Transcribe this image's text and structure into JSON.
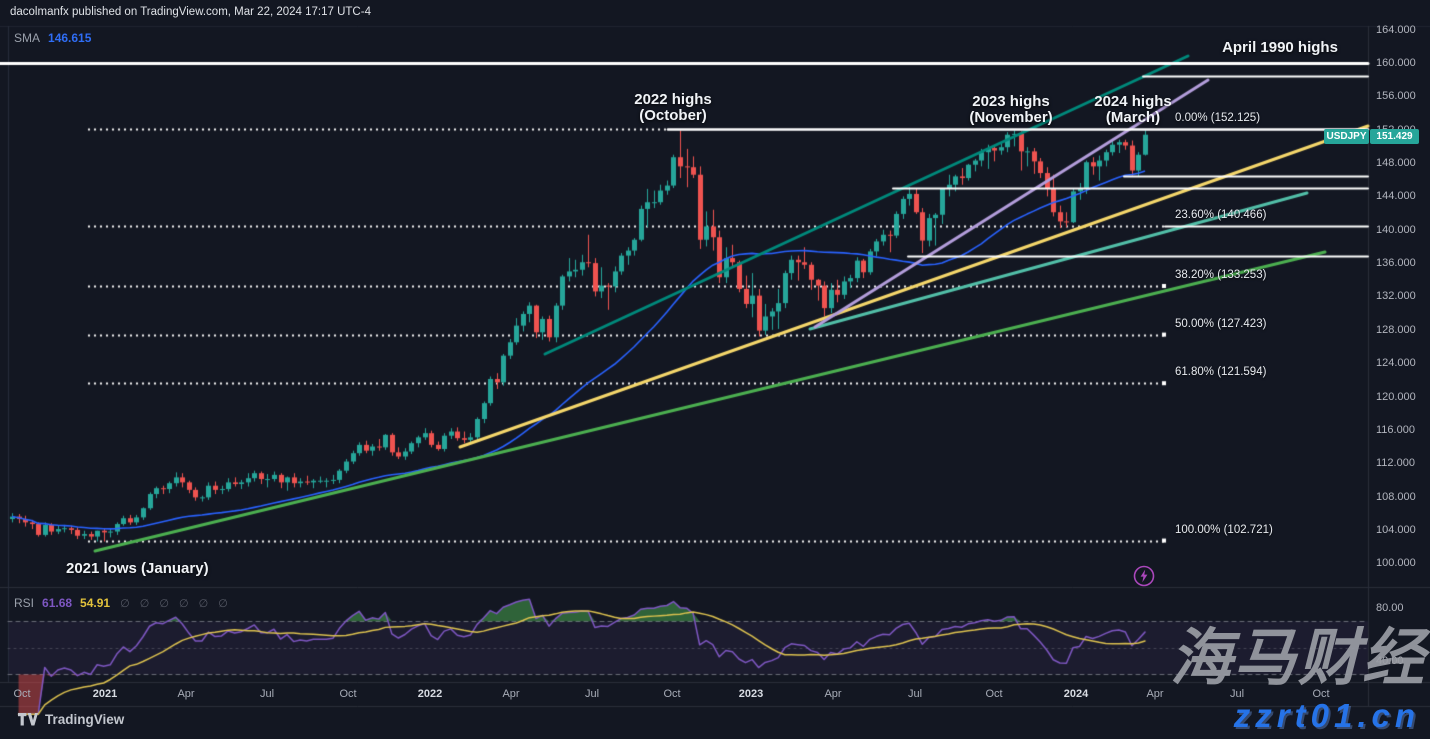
{
  "header": {
    "byline": "dacolmanfx published on TradingView.com, Mar 22, 2024 17:17 UTC-4"
  },
  "legend": {
    "sma_label": "SMA",
    "sma_value": "146.615"
  },
  "rsi_legend": {
    "label": "RSI",
    "value1": "61.68",
    "value2": "54.91",
    "empty_values_display": "∅ ∅ ∅ ∅ ∅ ∅"
  },
  "price_badge": {
    "symbol": "USDJPY",
    "price": "151.429",
    "color": "#26a69a"
  },
  "watermark": {
    "cn": "海马财经",
    "url": "zzrt01.cn"
  },
  "footer": {
    "logo_text": "TradingView"
  },
  "chart_data": {
    "type": "candlestick",
    "symbol": "USDJPY",
    "last_price": 151.429,
    "ylim": [
      98.5,
      164.5
    ],
    "colors": {
      "up": "#26a69a",
      "down": "#ef5350",
      "background": "#131722",
      "grid": "#2a2e39",
      "axis_text": "#b2b5be"
    },
    "price_axis_ticks": [
      164,
      160,
      156,
      152,
      148,
      144,
      140,
      136,
      132,
      128,
      124,
      120,
      116,
      112,
      108,
      104,
      100
    ],
    "rsi_axis_ticks": [
      80,
      40
    ],
    "time_axis": [
      {
        "label": "Oct",
        "x": 22
      },
      {
        "label": "2021",
        "x": 105,
        "bold": true
      },
      {
        "label": "Apr",
        "x": 186
      },
      {
        "label": "Jul",
        "x": 267
      },
      {
        "label": "Oct",
        "x": 348
      },
      {
        "label": "2022",
        "x": 430,
        "bold": true
      },
      {
        "label": "Apr",
        "x": 511
      },
      {
        "label": "Jul",
        "x": 592
      },
      {
        "label": "Oct",
        "x": 672
      },
      {
        "label": "2023",
        "x": 751,
        "bold": true
      },
      {
        "label": "Apr",
        "x": 833
      },
      {
        "label": "Jul",
        "x": 915
      },
      {
        "label": "Oct",
        "x": 994
      },
      {
        "label": "2024",
        "x": 1076,
        "bold": true
      },
      {
        "label": "Apr",
        "x": 1155
      },
      {
        "label": "Jul",
        "x": 1237
      },
      {
        "label": "Oct",
        "x": 1321
      }
    ],
    "annotations": [
      {
        "text": "April 1990 highs",
        "x": 1280,
        "y": 40
      },
      {
        "text": "2022 highs\n(October)",
        "x": 673,
        "y": 92
      },
      {
        "text": "2023 highs\n(November)",
        "x": 1011,
        "y": 94
      },
      {
        "text": "2024 highs\n(March)",
        "x": 1133,
        "y": 94
      },
      {
        "text": "2021 lows (January)",
        "x": 66,
        "y": 561,
        "align": "left"
      }
    ],
    "fibonacci": {
      "x_start": 88,
      "x_end": 1165,
      "label_x": 1175,
      "levels": [
        {
          "pct": "0.00%",
          "price": 152.125,
          "label": "0.00% (152.125)"
        },
        {
          "pct": "23.60%",
          "price": 140.466,
          "label": "23.60% (140.466)"
        },
        {
          "pct": "38.20%",
          "price": 133.253,
          "label": "38.20% (133.253)"
        },
        {
          "pct": "50.00%",
          "price": 127.423,
          "label": "50.00% (127.423)"
        },
        {
          "pct": "61.80%",
          "price": 121.594,
          "label": "61.80% (121.594)"
        },
        {
          "pct": "100.00%",
          "price": 102.721,
          "label": "100.00% (102.721)"
        }
      ]
    },
    "horizontal_lines": [
      {
        "price": 160.0,
        "x_start": 0,
        "width": 3
      },
      {
        "price": 158.44,
        "x_start": 1143,
        "width": 2
      },
      {
        "price": 152.125,
        "x_start": 668,
        "width": 2.5
      },
      {
        "price": 146.45,
        "x_start": 1124,
        "width": 2
      },
      {
        "price": 145.01,
        "x_start": 893,
        "width": 2
      },
      {
        "price": 136.86,
        "x_start": 908,
        "width": 2
      },
      {
        "price": 140.466,
        "x_start": 1165,
        "width": 2
      }
    ],
    "trendlines": [
      {
        "name": "green-support",
        "x1": 95,
        "y1": 551,
        "x2": 1325,
        "y2": 252,
        "color": "#4caf50",
        "width": 3
      },
      {
        "name": "yellow-support",
        "x1": 460,
        "y1": 447,
        "x2": 1368,
        "y2": 126,
        "color": "#f5d76b",
        "width": 3
      },
      {
        "name": "teal-dark-channel",
        "x1": 545,
        "y1": 354,
        "x2": 1188,
        "y2": 56,
        "color": "#00897b",
        "width": 3
      },
      {
        "name": "teal-light-support",
        "x1": 810,
        "y1": 329,
        "x2": 1307,
        "y2": 193,
        "color": "#52bfa8",
        "width": 3
      },
      {
        "name": "purple-channel",
        "x1": 815,
        "y1": 327,
        "x2": 1208,
        "y2": 80,
        "color": "#b39ddb",
        "width": 3
      }
    ],
    "sma": {
      "period": 35,
      "value": 146.615,
      "color": "#2962ff"
    },
    "rsi": {
      "period": 14,
      "value": 61.68,
      "ma_value": 54.91,
      "color": "#7e57c2",
      "ma_color": "#ddc24f",
      "bands": [
        70,
        50,
        30
      ],
      "overbought_fill": "#4caf50",
      "oversold_fill": "#ef5350"
    },
    "candles": [
      [
        105.3,
        106.0,
        104.9,
        105.6
      ],
      [
        105.6,
        105.9,
        104.8,
        105.3
      ],
      [
        105.3,
        105.7,
        104.4,
        104.9
      ],
      [
        104.9,
        105.2,
        104.1,
        104.7
      ],
      [
        104.7,
        104.9,
        103.2,
        103.4
      ],
      [
        103.4,
        104.9,
        103.2,
        104.6
      ],
      [
        104.6,
        104.8,
        103.4,
        103.8
      ],
      [
        103.8,
        104.5,
        103.5,
        104.1
      ],
      [
        104.1,
        104.6,
        103.7,
        104.2
      ],
      [
        104.2,
        104.5,
        103.5,
        104.0
      ],
      [
        104.0,
        104.3,
        102.9,
        103.3
      ],
      [
        103.3,
        103.9,
        102.9,
        103.5
      ],
      [
        103.5,
        103.8,
        102.8,
        103.2
      ],
      [
        103.2,
        103.9,
        102.6,
        103.9
      ],
      [
        103.9,
        104.1,
        102.6,
        103.7
      ],
      [
        103.7,
        104.2,
        103.1,
        103.8
      ],
      [
        103.8,
        104.9,
        103.4,
        104.7
      ],
      [
        104.7,
        105.7,
        104.5,
        105.4
      ],
      [
        105.4,
        105.8,
        104.6,
        104.9
      ],
      [
        104.9,
        105.8,
        104.6,
        105.5
      ],
      [
        105.5,
        106.7,
        105.2,
        106.6
      ],
      [
        106.6,
        108.5,
        106.4,
        108.3
      ],
      [
        108.3,
        109.2,
        107.8,
        109.0
      ],
      [
        109.0,
        109.3,
        108.3,
        108.9
      ],
      [
        108.9,
        109.8,
        108.4,
        109.6
      ],
      [
        109.6,
        110.9,
        109.2,
        110.3
      ],
      [
        110.3,
        110.8,
        109.1,
        109.7
      ],
      [
        109.7,
        109.9,
        108.4,
        108.8
      ],
      [
        108.8,
        109.1,
        107.5,
        107.9
      ],
      [
        107.9,
        108.1,
        107.4,
        107.9
      ],
      [
        107.9,
        109.7,
        107.6,
        109.3
      ],
      [
        109.3,
        109.8,
        108.3,
        108.8
      ],
      [
        108.8,
        109.3,
        108.3,
        108.9
      ],
      [
        108.9,
        110.2,
        108.6,
        109.7
      ],
      [
        109.7,
        110.3,
        109.2,
        109.5
      ],
      [
        109.5,
        110.0,
        108.9,
        109.7
      ],
      [
        109.7,
        110.8,
        109.2,
        110.2
      ],
      [
        110.2,
        111.1,
        109.8,
        110.8
      ],
      [
        110.8,
        111.0,
        109.5,
        110.1
      ],
      [
        110.1,
        110.7,
        109.1,
        110.1
      ],
      [
        110.1,
        111.0,
        109.8,
        110.6
      ],
      [
        110.6,
        110.8,
        109.0,
        109.7
      ],
      [
        109.7,
        110.4,
        108.7,
        110.3
      ],
      [
        110.3,
        110.8,
        109.1,
        109.6
      ],
      [
        109.6,
        110.2,
        109.1,
        109.8
      ],
      [
        109.8,
        110.5,
        109.4,
        109.7
      ],
      [
        109.7,
        110.1,
        109.0,
        109.9
      ],
      [
        109.9,
        110.4,
        109.6,
        109.9
      ],
      [
        109.9,
        110.2,
        109.1,
        109.9
      ],
      [
        109.9,
        110.6,
        109.5,
        110.0
      ],
      [
        110.0,
        111.3,
        109.6,
        111.1
      ],
      [
        111.1,
        112.5,
        110.8,
        112.2
      ],
      [
        112.2,
        113.5,
        111.9,
        113.2
      ],
      [
        113.2,
        114.5,
        112.9,
        114.2
      ],
      [
        114.2,
        114.7,
        113.2,
        113.5
      ],
      [
        113.5,
        114.3,
        112.9,
        114.0
      ],
      [
        114.0,
        114.9,
        113.5,
        113.9
      ],
      [
        113.9,
        115.5,
        113.6,
        115.4
      ],
      [
        115.4,
        115.6,
        112.9,
        113.3
      ],
      [
        113.3,
        113.9,
        112.5,
        112.8
      ],
      [
        112.8,
        113.8,
        112.4,
        113.4
      ],
      [
        113.4,
        114.6,
        113.1,
        114.4
      ],
      [
        114.4,
        115.3,
        113.9,
        115.1
      ],
      [
        115.1,
        116.2,
        114.8,
        115.6
      ],
      [
        115.6,
        115.9,
        113.9,
        114.2
      ],
      [
        114.2,
        114.6,
        113.5,
        113.7
      ],
      [
        113.7,
        115.6,
        113.4,
        115.3
      ],
      [
        115.3,
        116.2,
        114.9,
        115.8
      ],
      [
        115.8,
        116.3,
        114.7,
        115.0
      ],
      [
        115.0,
        115.8,
        114.4,
        114.8
      ],
      [
        114.8,
        115.6,
        114.5,
        115.1
      ],
      [
        115.1,
        117.5,
        114.7,
        117.3
      ],
      [
        117.3,
        119.4,
        116.8,
        119.2
      ],
      [
        119.2,
        122.4,
        118.9,
        122.1
      ],
      [
        122.1,
        122.8,
        120.9,
        121.7
      ],
      [
        121.7,
        125.1,
        121.3,
        124.9
      ],
      [
        124.9,
        126.9,
        124.5,
        126.5
      ],
      [
        126.5,
        129.4,
        126.2,
        128.5
      ],
      [
        128.5,
        130.2,
        127.8,
        129.9
      ],
      [
        129.9,
        131.3,
        128.9,
        130.9
      ],
      [
        130.9,
        131.0,
        127.0,
        127.7
      ],
      [
        127.7,
        129.6,
        126.8,
        129.3
      ],
      [
        129.3,
        129.7,
        126.6,
        127.1
      ],
      [
        127.1,
        131.2,
        126.5,
        130.9
      ],
      [
        130.9,
        134.6,
        130.4,
        134.4
      ],
      [
        134.4,
        136.6,
        133.8,
        135.0
      ],
      [
        135.0,
        136.4,
        134.3,
        135.2
      ],
      [
        135.2,
        137.0,
        134.5,
        136.1
      ],
      [
        136.1,
        139.4,
        135.5,
        136.0
      ],
      [
        136.0,
        136.6,
        132.0,
        132.6
      ],
      [
        132.6,
        135.5,
        131.8,
        133.3
      ],
      [
        133.3,
        133.6,
        130.4,
        133.2
      ],
      [
        133.2,
        135.6,
        132.5,
        135.0
      ],
      [
        135.0,
        137.2,
        134.6,
        136.9
      ],
      [
        136.9,
        137.9,
        135.8,
        137.5
      ],
      [
        137.5,
        139.0,
        136.9,
        138.8
      ],
      [
        138.8,
        142.9,
        138.6,
        142.5
      ],
      [
        142.5,
        144.9,
        140.3,
        143.3
      ],
      [
        143.3,
        144.7,
        142.6,
        143.3
      ],
      [
        143.3,
        145.4,
        143.0,
        144.7
      ],
      [
        144.7,
        145.9,
        144.2,
        145.3
      ],
      [
        145.3,
        149.0,
        145.0,
        148.7
      ],
      [
        148.7,
        151.9,
        146.2,
        147.6
      ],
      [
        147.6,
        149.7,
        145.1,
        147.5
      ],
      [
        147.5,
        148.8,
        146.2,
        146.6
      ],
      [
        146.6,
        147.6,
        137.7,
        138.8
      ],
      [
        138.8,
        142.2,
        138.0,
        140.4
      ],
      [
        140.4,
        142.4,
        137.5,
        139.1
      ],
      [
        139.1,
        139.9,
        133.6,
        134.3
      ],
      [
        134.3,
        137.9,
        133.6,
        136.6
      ],
      [
        136.6,
        138.2,
        135.6,
        136.1
      ],
      [
        136.1,
        136.3,
        132.5,
        132.9
      ],
      [
        132.9,
        134.5,
        130.6,
        131.1
      ],
      [
        131.1,
        134.8,
        129.5,
        132.1
      ],
      [
        132.1,
        132.9,
        127.2,
        127.9
      ],
      [
        127.9,
        131.1,
        127.4,
        129.6
      ],
      [
        129.6,
        130.6,
        128.0,
        130.2
      ],
      [
        130.2,
        132.9,
        128.1,
        131.2
      ],
      [
        131.2,
        135.1,
        130.6,
        134.8
      ],
      [
        134.8,
        136.9,
        134.0,
        136.4
      ],
      [
        136.4,
        136.9,
        133.9,
        136.1
      ],
      [
        136.1,
        137.9,
        135.3,
        135.8
      ],
      [
        135.8,
        136.1,
        132.8,
        134.0
      ],
      [
        134.0,
        134.1,
        131.5,
        133.3
      ],
      [
        133.3,
        133.8,
        129.6,
        130.6
      ],
      [
        130.6,
        133.6,
        130.0,
        132.8
      ],
      [
        132.8,
        134.0,
        131.3,
        132.2
      ],
      [
        132.2,
        134.4,
        131.7,
        133.8
      ],
      [
        133.8,
        134.6,
        133.0,
        134.2
      ],
      [
        134.2,
        136.7,
        133.7,
        136.3
      ],
      [
        136.3,
        136.5,
        134.2,
        134.9
      ],
      [
        134.9,
        137.7,
        134.6,
        137.4
      ],
      [
        137.4,
        138.9,
        136.8,
        138.6
      ],
      [
        138.6,
        140.0,
        138.1,
        139.4
      ],
      [
        139.4,
        139.9,
        137.3,
        139.3
      ],
      [
        139.3,
        142.2,
        139.0,
        141.9
      ],
      [
        141.9,
        144.0,
        141.3,
        143.7
      ],
      [
        143.7,
        145.1,
        142.9,
        144.3
      ],
      [
        144.3,
        144.9,
        141.9,
        142.1
      ],
      [
        142.1,
        142.6,
        137.2,
        138.7
      ],
      [
        138.7,
        141.9,
        138.0,
        141.4
      ],
      [
        141.4,
        142.0,
        138.1,
        141.8
      ],
      [
        141.8,
        145.0,
        140.7,
        144.9
      ],
      [
        144.9,
        146.6,
        144.0,
        145.4
      ],
      [
        145.4,
        146.6,
        144.6,
        146.4
      ],
      [
        146.4,
        147.4,
        145.4,
        146.2
      ],
      [
        146.2,
        147.9,
        145.9,
        147.8
      ],
      [
        147.8,
        148.5,
        147.0,
        148.3
      ],
      [
        148.3,
        149.7,
        147.6,
        149.3
      ],
      [
        149.3,
        150.2,
        147.3,
        149.8
      ],
      [
        149.8,
        150.1,
        148.2,
        149.5
      ],
      [
        149.5,
        150.4,
        149.0,
        149.9
      ],
      [
        149.9,
        151.7,
        149.3,
        151.4
      ],
      [
        151.4,
        151.9,
        150.0,
        151.5
      ],
      [
        151.5,
        151.8,
        147.1,
        149.4
      ],
      [
        149.4,
        149.9,
        147.6,
        149.4
      ],
      [
        149.4,
        149.8,
        146.7,
        148.2
      ],
      [
        148.2,
        148.6,
        146.2,
        146.8
      ],
      [
        146.8,
        147.5,
        144.0,
        144.9
      ],
      [
        144.9,
        146.6,
        141.6,
        142.1
      ],
      [
        142.1,
        142.9,
        140.2,
        141.0
      ],
      [
        141.0,
        142.1,
        140.3,
        140.9
      ],
      [
        140.9,
        145.0,
        140.8,
        144.6
      ],
      [
        144.6,
        145.6,
        143.6,
        145.0
      ],
      [
        145.0,
        148.3,
        144.3,
        148.1
      ],
      [
        148.1,
        148.7,
        146.6,
        147.6
      ],
      [
        147.6,
        148.9,
        145.9,
        148.3
      ],
      [
        148.3,
        149.6,
        147.6,
        149.3
      ],
      [
        149.3,
        150.9,
        148.9,
        150.2
      ],
      [
        150.2,
        150.8,
        149.2,
        150.5
      ],
      [
        150.5,
        150.8,
        149.6,
        150.1
      ],
      [
        150.1,
        150.7,
        146.5,
        147.1
      ],
      [
        147.1,
        149.3,
        146.4,
        149.0
      ],
      [
        149.0,
        151.9,
        148.9,
        151.4
      ]
    ]
  }
}
